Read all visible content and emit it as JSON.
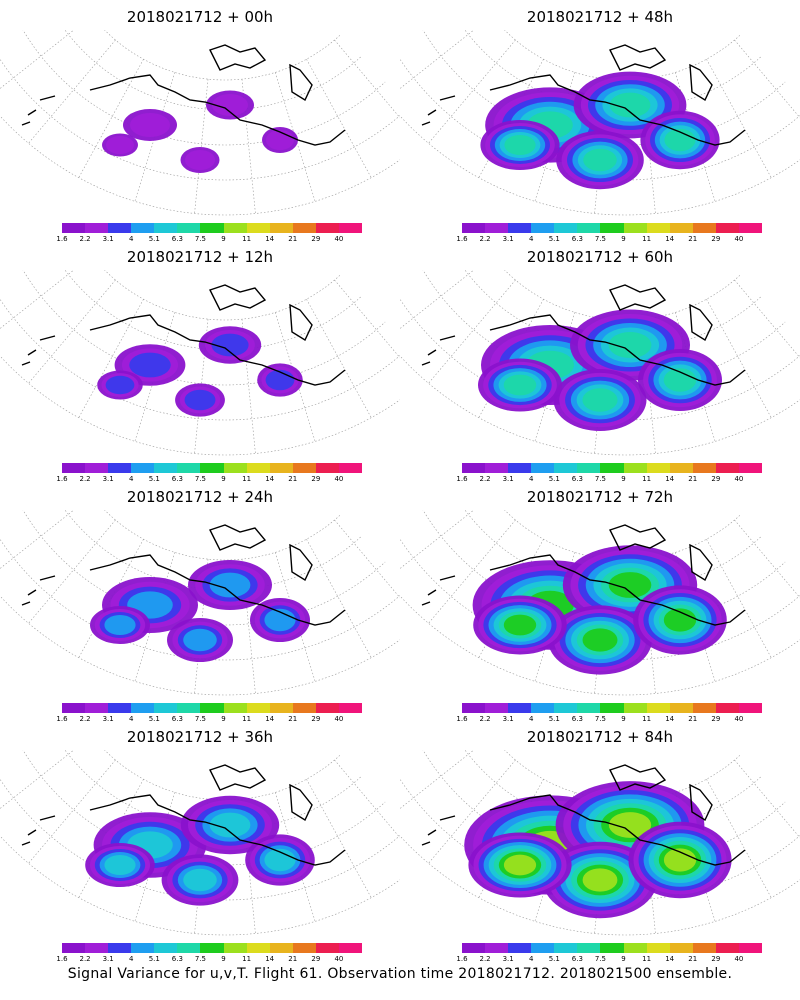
{
  "footer": "Signal Variance for u,v,T. Flight 61. Observation time 2018021712. 2018021500 ensemble.",
  "colorbar": {
    "labels": [
      "1.6",
      "2.2",
      "3.1",
      "4",
      "5.1",
      "6.3",
      "7.5",
      "9",
      "11",
      "14",
      "21",
      "29",
      "40"
    ],
    "colors": [
      "#8a12cc",
      "#a01ed8",
      "#3a3aec",
      "#1e9ef0",
      "#1ec8d6",
      "#1ed8a8",
      "#1ecc1e",
      "#9ce01e",
      "#dcdc1e",
      "#e8b41e",
      "#e8781e",
      "#ec1e50",
      "#f0147a"
    ]
  },
  "panels": [
    {
      "title": "2018021712 + 00h",
      "level": 0.25
    },
    {
      "title": "2018021712 + 48h",
      "level": 0.7
    },
    {
      "title": "2018021712 + 12h",
      "level": 0.35
    },
    {
      "title": "2018021712 + 60h",
      "level": 0.75
    },
    {
      "title": "2018021712 + 24h",
      "level": 0.5
    },
    {
      "title": "2018021712 + 72h",
      "level": 0.85
    },
    {
      "title": "2018021712 + 36h",
      "level": 0.6
    },
    {
      "title": "2018021712 + 84h",
      "level": 0.95
    }
  ]
}
